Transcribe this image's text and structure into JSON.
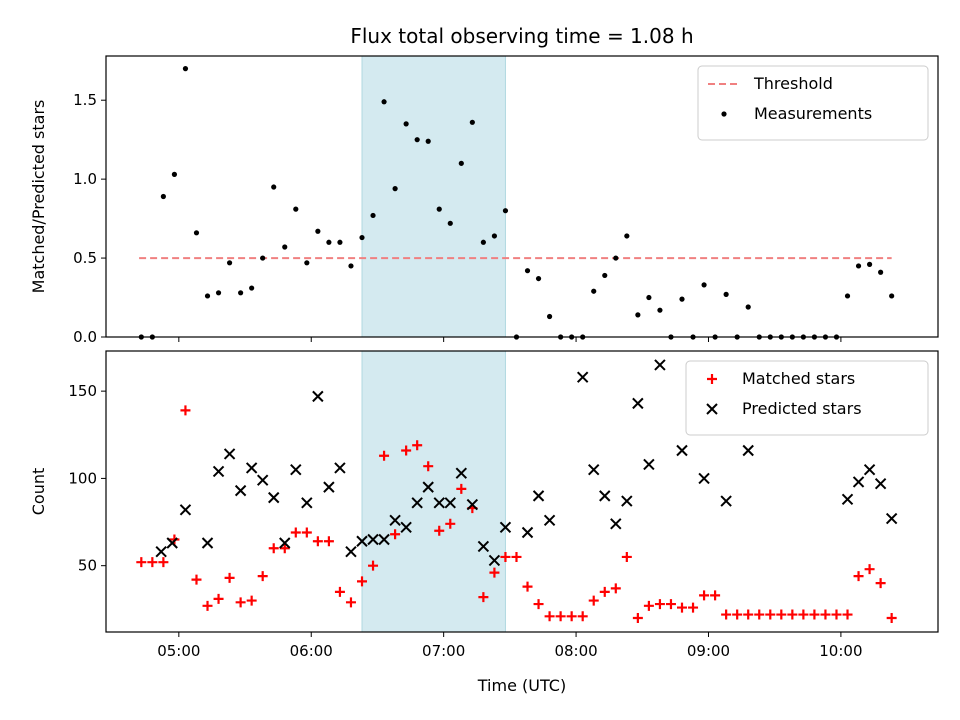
{
  "chart_data": [
    {
      "type": "scatter",
      "title": "Flux total observing time = 1.08 h",
      "ylabel": "Matched/Predicted stars",
      "xlabel": "",
      "xlim": [
        "04:27",
        "10:44"
      ],
      "ylim": [
        0,
        1.78
      ],
      "yticks": [
        "0.0",
        "0.5",
        "1.0",
        "1.5"
      ],
      "ytick_values": [
        0,
        0.5,
        1.0,
        1.5
      ],
      "legend_position": "top-right",
      "highlight_span": {
        "from": "06:23",
        "to": "07:28",
        "color": "#d4eaf0"
      },
      "series": [
        {
          "name": "Threshold",
          "style": "dashed-line",
          "color": "#f08080",
          "x": [
            "04:42",
            "10:23"
          ],
          "y": [
            0.5,
            0.5
          ]
        },
        {
          "name": "Measurements",
          "style": "dot",
          "color": "#000000",
          "x": [
            "04:43",
            "04:48",
            "04:53",
            "04:58",
            "05:03",
            "05:08",
            "05:13",
            "05:18",
            "05:23",
            "05:28",
            "05:33",
            "05:38",
            "05:43",
            "05:48",
            "05:53",
            "05:58",
            "06:03",
            "06:08",
            "06:13",
            "06:18",
            "06:23",
            "06:28",
            "06:33",
            "06:38",
            "06:43",
            "06:48",
            "06:53",
            "06:58",
            "07:03",
            "07:08",
            "07:13",
            "07:18",
            "07:23",
            "07:28",
            "07:33",
            "07:38",
            "07:43",
            "07:48",
            "07:53",
            "07:58",
            "08:03",
            "08:08",
            "08:13",
            "08:18",
            "08:23",
            "08:28",
            "08:33",
            "08:38",
            "08:43",
            "08:48",
            "08:53",
            "08:58",
            "09:03",
            "09:08",
            "09:13",
            "09:18",
            "09:23",
            "09:28",
            "09:33",
            "09:38",
            "09:43",
            "09:48",
            "09:53",
            "09:58",
            "10:03",
            "10:08",
            "10:13",
            "10:18",
            "10:23"
          ],
          "y": [
            0,
            0,
            0.89,
            1.03,
            1.7,
            0.66,
            0.26,
            0.28,
            0.47,
            0.28,
            0.31,
            0.5,
            0.95,
            0.57,
            0.81,
            0.47,
            0.67,
            0.6,
            0.6,
            0.45,
            0.63,
            0.77,
            1.49,
            0.94,
            1.35,
            1.25,
            1.24,
            0.81,
            0.72,
            1.1,
            1.36,
            0.6,
            0.64,
            0.8,
            0,
            0.42,
            0.37,
            0.13,
            0,
            0,
            0,
            0.29,
            0.39,
            0.5,
            0.64,
            0.14,
            0.25,
            0.17,
            0,
            0.24,
            0,
            0.33,
            0,
            0.27,
            0,
            0.19,
            0,
            0,
            0,
            0,
            0,
            0,
            0,
            0,
            0.26,
            0.45,
            0.46,
            0.41,
            0.26
          ]
        }
      ]
    },
    {
      "type": "scatter",
      "title": "",
      "ylabel": "Count",
      "xlabel": "Time (UTC)",
      "xlim": [
        "04:27",
        "10:44"
      ],
      "ylim": [
        12,
        173
      ],
      "yticks": [
        "50",
        "100",
        "150"
      ],
      "ytick_values": [
        50,
        100,
        150
      ],
      "xticks": [
        "05:00",
        "06:00",
        "07:00",
        "08:00",
        "09:00",
        "10:00"
      ],
      "legend_position": "top-right",
      "highlight_span": {
        "from": "06:23",
        "to": "07:28",
        "color": "#d4eaf0"
      },
      "series": [
        {
          "name": "Matched stars",
          "style": "plus",
          "color": "#ff0000",
          "x": [
            "04:43",
            "04:48",
            "04:53",
            "04:58",
            "05:03",
            "05:08",
            "05:13",
            "05:18",
            "05:23",
            "05:28",
            "05:33",
            "05:38",
            "05:43",
            "05:48",
            "05:53",
            "05:58",
            "06:03",
            "06:08",
            "06:13",
            "06:18",
            "06:23",
            "06:28",
            "06:33",
            "06:38",
            "06:43",
            "06:48",
            "06:53",
            "06:58",
            "07:03",
            "07:08",
            "07:13",
            "07:18",
            "07:23",
            "07:28",
            "07:33",
            "07:38",
            "07:43",
            "07:48",
            "07:53",
            "07:58",
            "08:03",
            "08:08",
            "08:13",
            "08:18",
            "08:23",
            "08:28",
            "08:33",
            "08:38",
            "08:43",
            "08:48",
            "08:53",
            "08:58",
            "09:03",
            "09:08",
            "09:13",
            "09:18",
            "09:23",
            "09:28",
            "09:33",
            "09:38",
            "09:43",
            "09:48",
            "09:53",
            "09:58",
            "10:03",
            "10:08",
            "10:13",
            "10:18",
            "10:23"
          ],
          "y": [
            52,
            52,
            52,
            65,
            139,
            42,
            27,
            31,
            43,
            29,
            30,
            44,
            60,
            60,
            69,
            69,
            64,
            64,
            35,
            29,
            41,
            50,
            113,
            68,
            116,
            119,
            107,
            70,
            74,
            94,
            83,
            32,
            46,
            55,
            55,
            38,
            28,
            21,
            21,
            21,
            21,
            30,
            35,
            37,
            55,
            20,
            27,
            28,
            28,
            26,
            26,
            33,
            33,
            22,
            22,
            22,
            22,
            22,
            22,
            22,
            22,
            22,
            22,
            22,
            22,
            44,
            48,
            40,
            20
          ]
        },
        {
          "name": "Predicted stars",
          "style": "x",
          "color": "#000000",
          "x": [
            "04:52",
            "04:57",
            "05:03",
            "05:13",
            "05:18",
            "05:23",
            "05:28",
            "05:33",
            "05:38",
            "05:43",
            "05:48",
            "05:53",
            "05:58",
            "06:03",
            "06:08",
            "06:13",
            "06:18",
            "06:23",
            "06:28",
            "06:33",
            "06:38",
            "06:43",
            "06:48",
            "06:53",
            "06:58",
            "07:03",
            "07:08",
            "07:13",
            "07:18",
            "07:23",
            "07:28",
            "07:38",
            "07:43",
            "07:48",
            "08:03",
            "08:08",
            "08:13",
            "08:18",
            "08:23",
            "08:28",
            "08:33",
            "08:38",
            "08:48",
            "08:58",
            "09:08",
            "09:18",
            "10:03",
            "10:08",
            "10:13",
            "10:18",
            "10:23"
          ],
          "y": [
            58,
            63,
            82,
            63,
            104,
            114,
            93,
            106,
            99,
            89,
            63,
            105,
            86,
            147,
            95,
            106,
            58,
            64,
            65,
            65,
            76,
            72,
            86,
            95,
            86,
            86,
            103,
            85,
            61,
            53,
            72,
            69,
            90,
            76,
            158,
            105,
            90,
            74,
            87,
            143,
            108,
            165,
            116,
            100,
            87,
            116,
            88,
            98,
            105,
            97,
            77
          ]
        }
      ]
    }
  ]
}
